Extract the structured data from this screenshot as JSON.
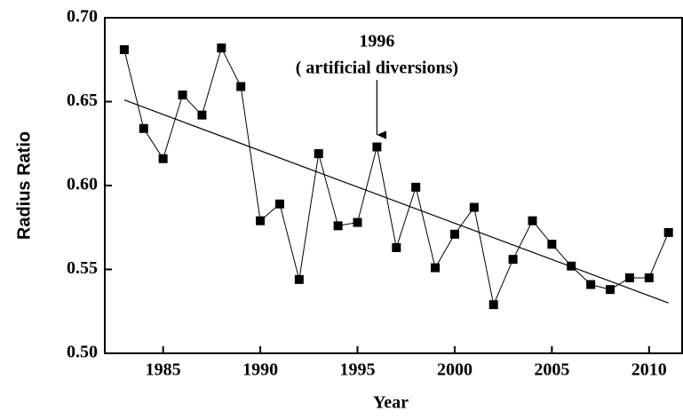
{
  "chart_data": {
    "type": "line",
    "x_label": "Year",
    "y_label": "Radius Ratio",
    "annotation": {
      "lines": [
        "1996",
        "( artificial diversions)"
      ],
      "x": 1996
    },
    "x": [
      1983,
      1984,
      1985,
      1986,
      1987,
      1988,
      1989,
      1990,
      1991,
      1992,
      1993,
      1994,
      1995,
      1996,
      1997,
      1998,
      1999,
      2000,
      2001,
      2002,
      2003,
      2004,
      2005,
      2006,
      2007,
      2008,
      2009,
      2010,
      2011
    ],
    "series": [
      {
        "color": "#000000",
        "marker": "square",
        "values": [
          0.681,
          0.634,
          0.616,
          0.654,
          0.642,
          0.682,
          0.659,
          0.579,
          0.589,
          0.544,
          0.619,
          0.576,
          0.578,
          0.623,
          0.563,
          0.599,
          0.551,
          0.571,
          0.587,
          0.529,
          0.556,
          0.579,
          0.565,
          0.552,
          0.541,
          0.538,
          0.545,
          0.545,
          0.572
        ]
      }
    ],
    "trend": {
      "color": "#000000",
      "x": [
        1983,
        2011
      ],
      "values": [
        0.651,
        0.53
      ]
    },
    "xlim": [
      1982,
      2011.7
    ],
    "ylim": [
      0.5,
      0.7
    ],
    "xticks": [
      1985,
      1990,
      1995,
      2000,
      2005,
      2010
    ],
    "yticks": [
      {
        "value": 0.5,
        "label": "0.50"
      },
      0.55,
      {
        "value": 0.6,
        "label": "0.60"
      },
      0.65,
      {
        "value": 0.7,
        "label": "0.70"
      }
    ]
  }
}
